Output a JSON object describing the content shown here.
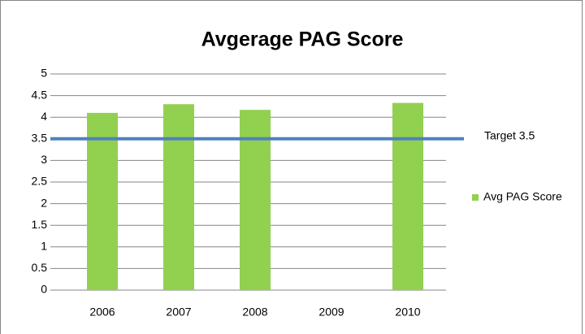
{
  "chart_data": {
    "type": "bar",
    "title": "Avgerage PAG Score",
    "categories": [
      "2006",
      "2007",
      "2008",
      "2009",
      "2010"
    ],
    "series": [
      {
        "name": "Avg PAG Score",
        "color": "#92d050",
        "values": [
          4.1,
          4.3,
          4.17,
          null,
          4.33
        ]
      }
    ],
    "ylim": [
      0,
      5
    ],
    "yticks": [
      0,
      0.5,
      1,
      1.5,
      2,
      2.5,
      3,
      3.5,
      4,
      4.5,
      5
    ],
    "grid": true,
    "target": {
      "label": "Target 3.5",
      "value": 3.5,
      "color": "#4f81bd"
    }
  }
}
